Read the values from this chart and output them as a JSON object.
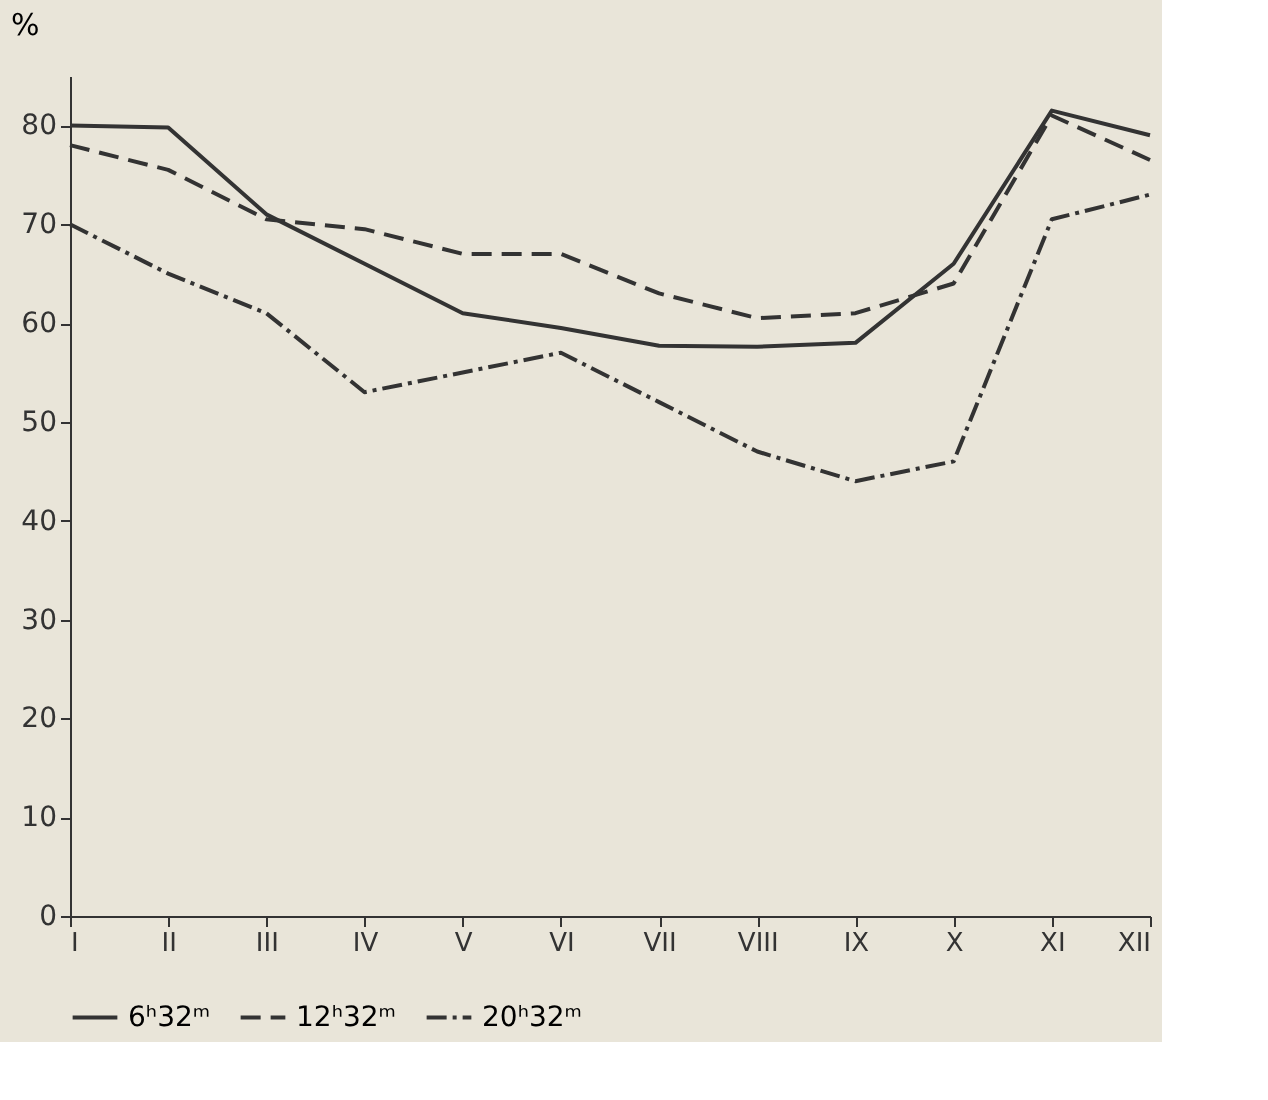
{
  "chart_data": {
    "type": "line",
    "ylabel": "%",
    "categories": [
      "I",
      "II",
      "III",
      "IV",
      "V",
      "VI",
      "VII",
      "VIII",
      "IX",
      "X",
      "XI",
      "XII"
    ],
    "series": [
      {
        "name": "6ʰ32ᵐ",
        "color": "#333333",
        "line_style": "solid",
        "values": [
          80,
          79.8,
          71,
          66,
          61,
          59.5,
          57.7,
          57.6,
          58,
          66,
          81.5,
          79
        ]
      },
      {
        "name": "12ʰ32ᵐ",
        "color": "#333333",
        "line_style": "dashed",
        "values": [
          78,
          75.5,
          70.5,
          69.5,
          67,
          67,
          63,
          60.5,
          61,
          64,
          81,
          76.5
        ]
      },
      {
        "name": "20ʰ32ᵐ",
        "color": "#333333",
        "line_style": "dotted",
        "values": [
          70,
          65,
          61,
          53,
          55,
          57,
          52,
          47,
          44,
          46,
          70.5,
          73
        ]
      }
    ],
    "ylim": [
      0,
      85
    ],
    "yticks": [
      0,
      10,
      20,
      30,
      40,
      50,
      60,
      70,
      80
    ],
    "grid": false,
    "legend": "bottom",
    "marker": "none"
  }
}
